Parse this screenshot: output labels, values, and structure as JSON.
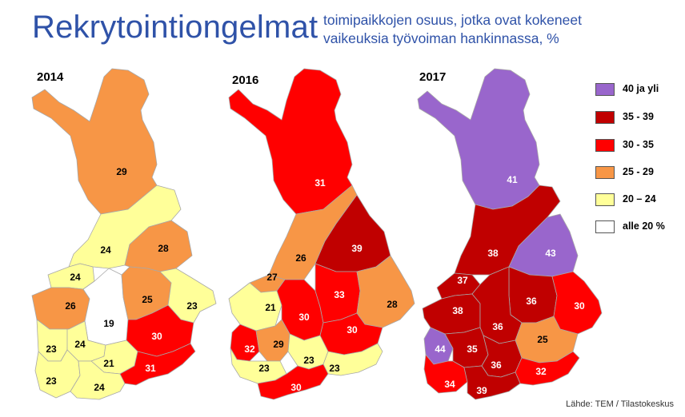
{
  "title": "Rekrytointiongelmat",
  "subtitle": [
    "toimipaikkojen osuus, jotka ovat kokeneet",
    "vaikeuksia työvoiman hankinnassa, %"
  ],
  "source": "Lähde: TEM / Tilastokeskus",
  "colors": {
    "c40": "#9966cc",
    "c35": "#c00000",
    "c30": "#ff0000",
    "c25": "#f79646",
    "c20": "#ffff99",
    "c0": "#ffffff"
  },
  "legend": [
    {
      "label": "40 ja yli",
      "color": "#9966cc"
    },
    {
      "label": "35 - 39",
      "color": "#c00000"
    },
    {
      "label": "30 - 35",
      "color": "#ff0000"
    },
    {
      "label": "25 - 29",
      "color": "#f79646"
    },
    {
      "label": "20 – 24",
      "color": "#ffff99"
    },
    {
      "label": "alle 20 %",
      "color": "#ffffff"
    }
  ],
  "maps": [
    {
      "year": "2014",
      "regions": [
        {
          "id": "lappi",
          "value": 29,
          "label": "29"
        },
        {
          "id": "pohjois-pohjanmaa",
          "value": 24,
          "label": "24"
        },
        {
          "id": "kainuu",
          "value": 28,
          "label": "28"
        },
        {
          "id": "keski-pohjanmaa",
          "value": 24,
          "label": "24"
        },
        {
          "id": "etela-pohjanmaa",
          "value": 26,
          "label": "26"
        },
        {
          "id": "keski-suomi",
          "value": 19,
          "label": "19"
        },
        {
          "id": "pohjois-savo",
          "value": 25,
          "label": "25"
        },
        {
          "id": "pohjois-karjala",
          "value": 23,
          "label": "23"
        },
        {
          "id": "etela-savo",
          "value": 30,
          "label": "30"
        },
        {
          "id": "satakunta",
          "value": 23,
          "label": "23"
        },
        {
          "id": "pirkanmaa",
          "value": 24,
          "label": "24"
        },
        {
          "id": "paijat-hame",
          "value": 21,
          "label": "21"
        },
        {
          "id": "varsinais-suomi",
          "value": 23,
          "label": "23"
        },
        {
          "id": "uusimaa",
          "value": 24,
          "label": "24"
        },
        {
          "id": "kymenlaakso",
          "value": 31,
          "label": "31"
        }
      ]
    },
    {
      "year": "2016",
      "regions": [
        {
          "id": "lappi",
          "value": 31,
          "label": "31"
        },
        {
          "id": "pohjois-pohjanmaa",
          "value": 26,
          "label": "26"
        },
        {
          "id": "kainuu",
          "value": 39,
          "label": "39"
        },
        {
          "id": "keski-pohjanmaa",
          "value": 27,
          "label": "27"
        },
        {
          "id": "pohjanmaa",
          "value": 21,
          "label": "21"
        },
        {
          "id": "keski-suomi",
          "value": 30,
          "label": "30"
        },
        {
          "id": "pohjois-savo",
          "value": 33,
          "label": "33"
        },
        {
          "id": "pohjois-karjala",
          "value": 28,
          "label": "28"
        },
        {
          "id": "etela-savo",
          "value": 30,
          "label": "30"
        },
        {
          "id": "satakunta",
          "value": 32,
          "label": "32"
        },
        {
          "id": "pirkanmaa",
          "value": 29,
          "label": "29"
        },
        {
          "id": "kanta-hame",
          "value": 23,
          "label": "23"
        },
        {
          "id": "varsinais-suomi",
          "value": 23,
          "label": "23"
        },
        {
          "id": "kymenlaakso",
          "value": 23,
          "label": "23"
        },
        {
          "id": "uusimaa",
          "value": 30,
          "label": "30"
        }
      ]
    },
    {
      "year": "2017",
      "regions": [
        {
          "id": "lappi",
          "value": 41,
          "label": "41"
        },
        {
          "id": "pohjois-pohjanmaa",
          "value": 38,
          "label": "38"
        },
        {
          "id": "kainuu",
          "value": 43,
          "label": "43"
        },
        {
          "id": "keski-pohjanmaa",
          "value": 37,
          "label": "37"
        },
        {
          "id": "etela-pohjanmaa",
          "value": 38,
          "label": "38"
        },
        {
          "id": "pohjois-savo",
          "value": 36,
          "label": "36"
        },
        {
          "id": "pohjois-karjala",
          "value": 30,
          "label": "30"
        },
        {
          "id": "keski-suomi",
          "value": 36,
          "label": "36"
        },
        {
          "id": "satakunta",
          "value": 44,
          "label": "44"
        },
        {
          "id": "pirkanmaa",
          "value": 35,
          "label": "35"
        },
        {
          "id": "etela-savo",
          "value": 25,
          "label": "25"
        },
        {
          "id": "paijat-hame",
          "value": 36,
          "label": "36"
        },
        {
          "id": "kymenlaakso",
          "value": 32,
          "label": "32"
        },
        {
          "id": "varsinais-suomi",
          "value": 34,
          "label": "34"
        },
        {
          "id": "uusimaa",
          "value": 39,
          "label": "39"
        }
      ]
    }
  ]
}
